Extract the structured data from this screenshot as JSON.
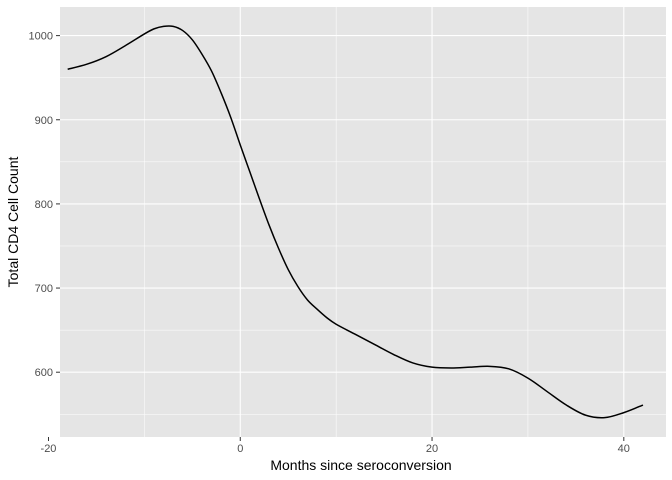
{
  "chart_data": {
    "type": "line",
    "title": "",
    "xlabel": "Months since seroconversion",
    "ylabel": "Total CD4 Cell Count",
    "xlim": [
      -18.8,
      44.4
    ],
    "ylim": [
      523,
      1034
    ],
    "x_ticks": [
      -20,
      0,
      20,
      40
    ],
    "x_tick_labels": [
      "-20",
      "0",
      "20",
      "40"
    ],
    "y_ticks": [
      600,
      700,
      800,
      900,
      1000
    ],
    "y_tick_labels": [
      "600",
      "700",
      "800",
      "900",
      "1000"
    ],
    "grid": true,
    "legend": "none",
    "panel_background": "#e5e5e5",
    "grid_color": "#ffffff",
    "line_color": "#000000",
    "series": [
      {
        "x": [
          -18,
          -16,
          -14,
          -12,
          -10,
          -9,
          -8,
          -7,
          -6,
          -5,
          -4,
          -3,
          -2,
          -1,
          0,
          1,
          2,
          3,
          4,
          5,
          6,
          7,
          8,
          9,
          10,
          12,
          14,
          16,
          18,
          20,
          22,
          24,
          26,
          28,
          30,
          32,
          34,
          36,
          38,
          40,
          42
        ],
        "y": [
          960,
          966,
          975,
          988,
          1002,
          1008,
          1011,
          1011,
          1006,
          995,
          978,
          958,
          932,
          903,
          870,
          838,
          806,
          775,
          747,
          722,
          702,
          686,
          675,
          665,
          657,
          645,
          633,
          621,
          611,
          606,
          605,
          606,
          607,
          604,
          593,
          577,
          561,
          549,
          546,
          552,
          561
        ]
      }
    ]
  }
}
